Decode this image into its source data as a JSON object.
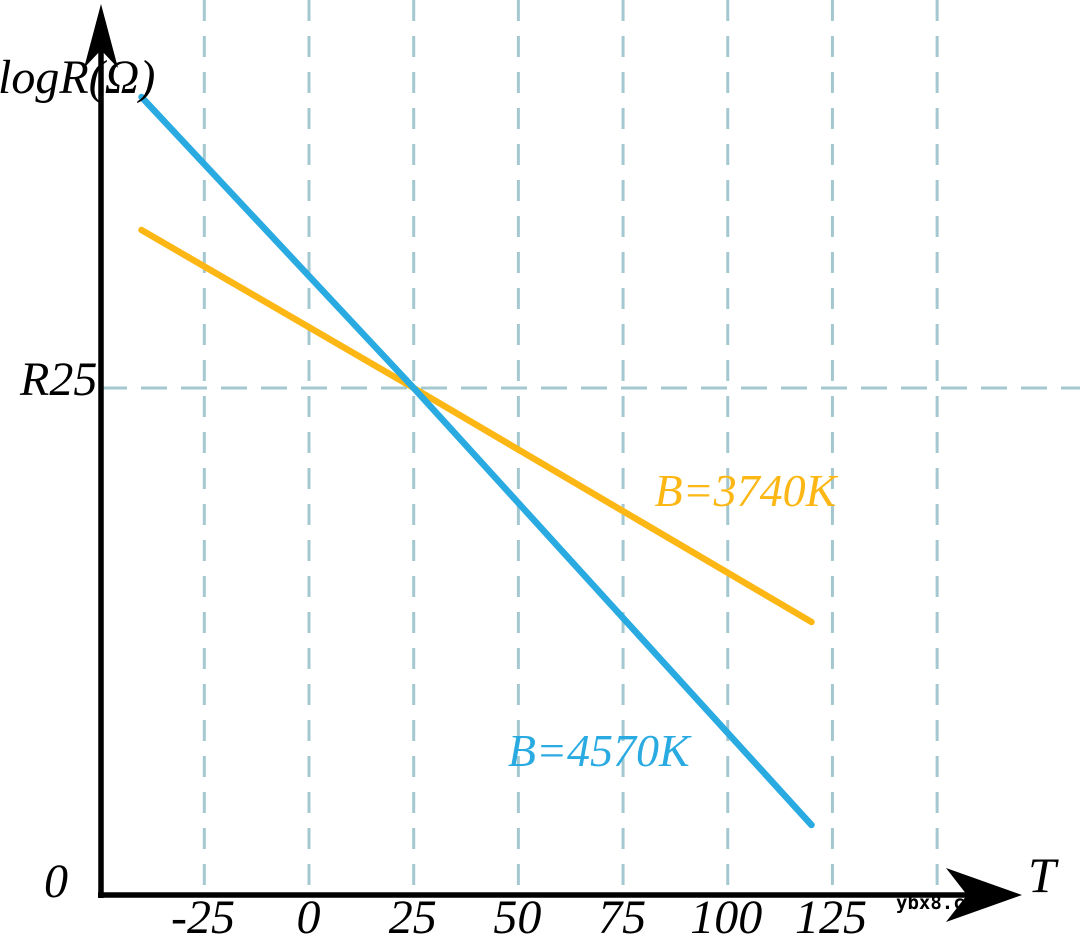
{
  "page": {
    "background": "#FFFFFF",
    "watermark": "ybx8.cn"
  },
  "chart_data": {
    "type": "line",
    "title": "",
    "xlabel": "T",
    "ylabel": "logR(Ω)",
    "origin_label": "0",
    "y_ref_label": "R25",
    "axis_note": "y axis is logR(Ω), qualitative; only the R25 level is marked. logR values below are relative to the R25 level in arbitrary log units.",
    "x_ticks": [
      {
        "label": "-25",
        "T": -25
      },
      {
        "label": "0",
        "T": 0
      },
      {
        "label": "25",
        "T": 25
      },
      {
        "label": "50",
        "T": 50
      },
      {
        "label": "75",
        "T": 75
      },
      {
        "label": "100",
        "T": 100
      },
      {
        "label": "125",
        "T": 125
      }
    ],
    "extra_gridlines_T": [
      150
    ],
    "x_range": [
      -50,
      160
    ],
    "grid": {
      "on": true,
      "color": "#A4C8CF",
      "style": "dashed"
    },
    "axis_color": "#000000",
    "reference_line": {
      "label": "R25",
      "logR": 0,
      "crossing_T": 25
    },
    "series": [
      {
        "name": "B=3740K",
        "color": "#FDB714",
        "points": [
          {
            "T": -40,
            "logR": 1.58
          },
          {
            "T": 25,
            "logR": 0
          },
          {
            "T": 120,
            "logR": -2.34
          }
        ],
        "label_pos": {
          "T": 82.5,
          "logR": -0.8
        }
      },
      {
        "name": "B=4570K",
        "color": "#29ABE2",
        "points": [
          {
            "T": -40,
            "logR": 2.91
          },
          {
            "T": 25,
            "logR": 0
          },
          {
            "T": 120,
            "logR": -4.37
          }
        ],
        "label_pos": {
          "T": 47.5,
          "logR": -3.4
        }
      }
    ]
  }
}
